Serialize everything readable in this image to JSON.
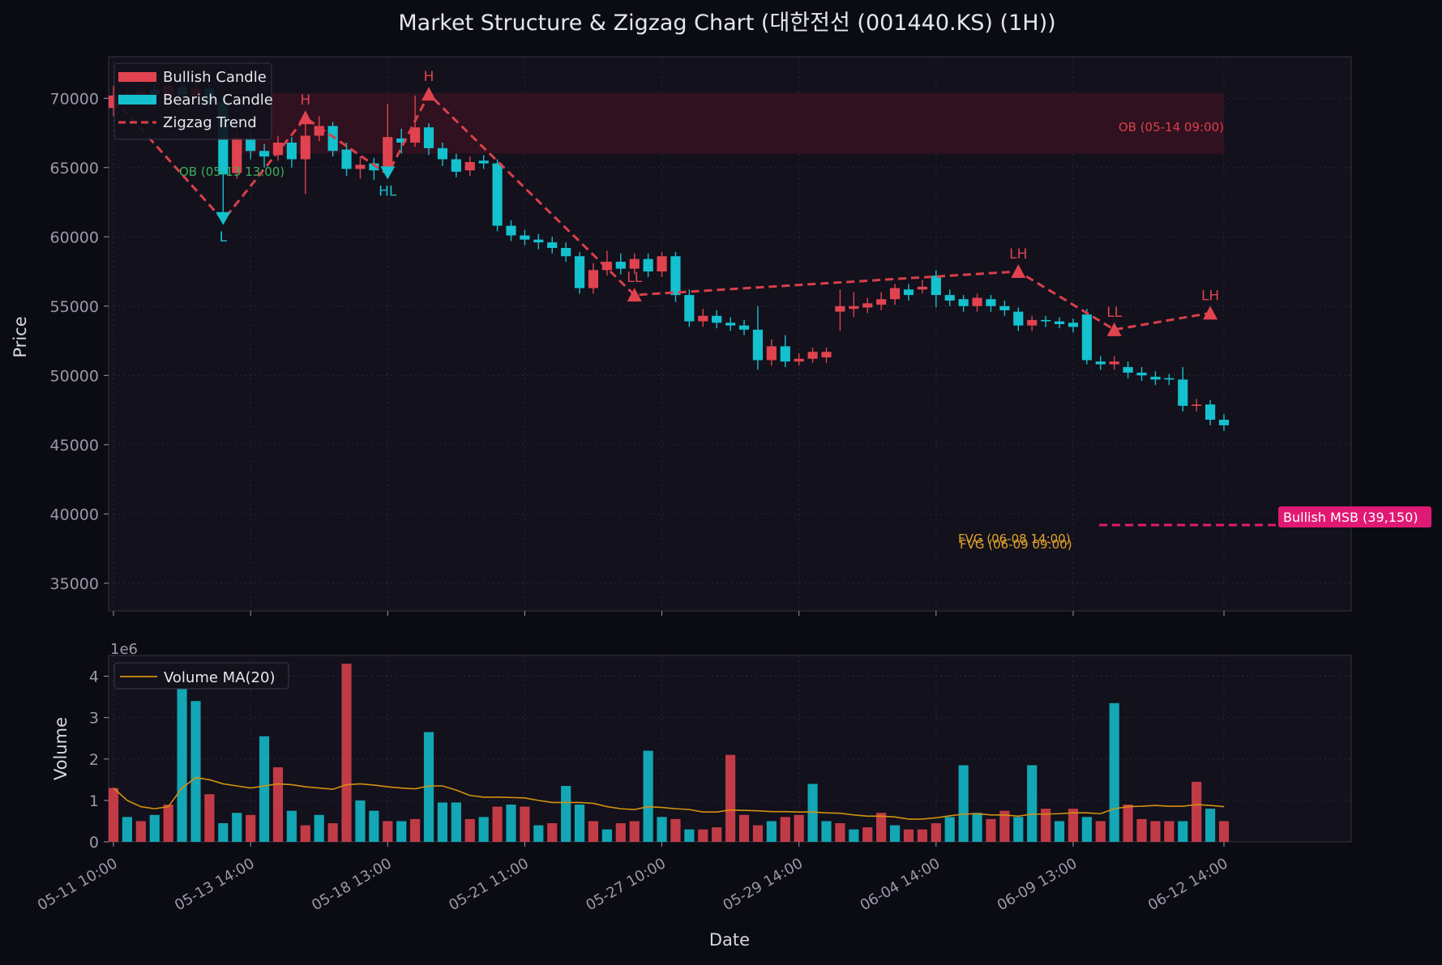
{
  "title": "Market Structure & Zigzag Chart (대한전선 (001440.KS) (1H))",
  "colors": {
    "background": "#0b0b14",
    "panel": "#12111c",
    "grid": "#2a2936",
    "bullish": "#e0434f",
    "bearish": "#14c1cf",
    "zigzag": "#d9404a",
    "volume_ma": "#d4910f",
    "msb": "#e01a74",
    "ob_bear": "#3a1220",
    "ob_bull_text": "#3fae57",
    "fvg": "#e0a12a",
    "text": "#d8d8e0",
    "tick": "#9a99a8"
  },
  "legend_price": [
    {
      "label": "Bullish Candle",
      "color": "#e0434f",
      "kind": "bar"
    },
    {
      "label": "Bearish Candle",
      "color": "#14c1cf",
      "kind": "bar"
    },
    {
      "label": "Zigzag Trend",
      "color": "#d9404a",
      "kind": "dash"
    }
  ],
  "legend_volume": [
    {
      "label": "Volume MA(20)",
      "color": "#d4910f",
      "kind": "line"
    }
  ],
  "annotations": {
    "ob_bear_label": "OB (05-14 09:00)",
    "ob_bull_label": "OB (05-13 13:00)",
    "fvg_label_1": "FVG (06-08 14:00)",
    "fvg_label_2": "FVG (06-09 09:00)",
    "msb_label": "Bullish MSB (39,150)",
    "volume_exponent": "1e6"
  },
  "chart_data": [
    {
      "type": "candlestick",
      "ylabel": "Price",
      "ylim": [
        33000,
        73000
      ],
      "yticks": [
        35000,
        40000,
        45000,
        50000,
        55000,
        60000,
        65000,
        70000
      ],
      "grid": true,
      "legend_position": "top-left",
      "bars": 82,
      "candles": [
        {
          "i": 0,
          "o": 69300,
          "c": 70200,
          "h": 70900,
          "l": 68700
        },
        {
          "i": 1,
          "o": 70100,
          "c": 70300,
          "h": 70800,
          "l": 69600
        },
        {
          "i": 2,
          "o": 70200,
          "c": 70500,
          "h": 71000,
          "l": 69900
        },
        {
          "i": 3,
          "o": 70600,
          "c": 70300,
          "h": 71000,
          "l": 69800
        },
        {
          "i": 4,
          "o": 70100,
          "c": 70900,
          "h": 71300,
          "l": 69800
        },
        {
          "i": 5,
          "o": 70800,
          "c": 70200,
          "h": 71200,
          "l": 69700
        },
        {
          "i": 6,
          "o": 70200,
          "c": 70700,
          "h": 71100,
          "l": 69900
        },
        {
          "i": 7,
          "o": 70700,
          "c": 69700,
          "h": 72000,
          "l": 69300
        },
        {
          "i": 8,
          "o": 69700,
          "c": 64500,
          "h": 70200,
          "l": 61200
        },
        {
          "i": 9,
          "o": 64600,
          "c": 67200,
          "h": 67700,
          "l": 64200
        },
        {
          "i": 10,
          "o": 67100,
          "c": 66200,
          "h": 67600,
          "l": 65600
        },
        {
          "i": 11,
          "o": 66200,
          "c": 65800,
          "h": 66700,
          "l": 65000
        },
        {
          "i": 12,
          "o": 65900,
          "c": 66800,
          "h": 67300,
          "l": 65500
        },
        {
          "i": 13,
          "o": 66800,
          "c": 65600,
          "h": 67200,
          "l": 65000
        },
        {
          "i": 14,
          "o": 65600,
          "c": 67300,
          "h": 68400,
          "l": 63100
        },
        {
          "i": 15,
          "o": 67300,
          "c": 68000,
          "h": 68700,
          "l": 66900
        },
        {
          "i": 16,
          "o": 68000,
          "c": 66200,
          "h": 68300,
          "l": 65800
        },
        {
          "i": 17,
          "o": 66300,
          "c": 64900,
          "h": 66800,
          "l": 64400
        },
        {
          "i": 18,
          "o": 64900,
          "c": 65200,
          "h": 65800,
          "l": 64200
        },
        {
          "i": 19,
          "o": 65300,
          "c": 64800,
          "h": 65700,
          "l": 64100
        },
        {
          "i": 20,
          "o": 64700,
          "c": 67200,
          "h": 69600,
          "l": 64400
        },
        {
          "i": 21,
          "o": 67100,
          "c": 66800,
          "h": 67800,
          "l": 66000
        },
        {
          "i": 22,
          "o": 66800,
          "c": 67900,
          "h": 70200,
          "l": 66500
        },
        {
          "i": 23,
          "o": 67900,
          "c": 66400,
          "h": 68200,
          "l": 65900
        },
        {
          "i": 24,
          "o": 66400,
          "c": 65600,
          "h": 66800,
          "l": 65100
        },
        {
          "i": 25,
          "o": 65600,
          "c": 64700,
          "h": 66000,
          "l": 64300
        },
        {
          "i": 26,
          "o": 64800,
          "c": 65400,
          "h": 65800,
          "l": 64400
        },
        {
          "i": 27,
          "o": 65500,
          "c": 65300,
          "h": 65900,
          "l": 64900
        },
        {
          "i": 28,
          "o": 65300,
          "c": 60800,
          "h": 65600,
          "l": 60400
        },
        {
          "i": 29,
          "o": 60800,
          "c": 60100,
          "h": 61200,
          "l": 59700
        },
        {
          "i": 30,
          "o": 60100,
          "c": 59800,
          "h": 60500,
          "l": 59400
        },
        {
          "i": 31,
          "o": 59800,
          "c": 59600,
          "h": 60200,
          "l": 59100
        },
        {
          "i": 32,
          "o": 59600,
          "c": 59200,
          "h": 60000,
          "l": 58800
        },
        {
          "i": 33,
          "o": 59200,
          "c": 58600,
          "h": 59600,
          "l": 58200
        },
        {
          "i": 34,
          "o": 58600,
          "c": 56300,
          "h": 58900,
          "l": 55900
        },
        {
          "i": 35,
          "o": 56300,
          "c": 57600,
          "h": 58100,
          "l": 55900
        },
        {
          "i": 36,
          "o": 57600,
          "c": 58200,
          "h": 59000,
          "l": 57200
        },
        {
          "i": 37,
          "o": 58200,
          "c": 57700,
          "h": 58800,
          "l": 57300
        },
        {
          "i": 38,
          "o": 57700,
          "c": 58400,
          "h": 58800,
          "l": 57300
        },
        {
          "i": 39,
          "o": 58400,
          "c": 57500,
          "h": 58800,
          "l": 57100
        },
        {
          "i": 40,
          "o": 57500,
          "c": 58600,
          "h": 58900,
          "l": 57100
        },
        {
          "i": 41,
          "o": 58600,
          "c": 55800,
          "h": 58900,
          "l": 55300
        },
        {
          "i": 42,
          "o": 55800,
          "c": 53900,
          "h": 56200,
          "l": 53500
        },
        {
          "i": 43,
          "o": 53900,
          "c": 54300,
          "h": 54800,
          "l": 53500
        },
        {
          "i": 44,
          "o": 54300,
          "c": 53800,
          "h": 54700,
          "l": 53400
        },
        {
          "i": 45,
          "o": 53800,
          "c": 53600,
          "h": 54200,
          "l": 53200
        },
        {
          "i": 46,
          "o": 53600,
          "c": 53300,
          "h": 54000,
          "l": 52900
        },
        {
          "i": 47,
          "o": 53300,
          "c": 51100,
          "h": 55000,
          "l": 50400
        },
        {
          "i": 48,
          "o": 51100,
          "c": 52100,
          "h": 52600,
          "l": 50700
        },
        {
          "i": 49,
          "o": 52100,
          "c": 51000,
          "h": 52900,
          "l": 50600
        },
        {
          "i": 50,
          "o": 51000,
          "c": 51200,
          "h": 51600,
          "l": 50700
        },
        {
          "i": 51,
          "o": 51200,
          "c": 51700,
          "h": 52000,
          "l": 50900
        },
        {
          "i": 52,
          "o": 51300,
          "c": 51700,
          "h": 52000,
          "l": 50900
        },
        {
          "i": 53,
          "o": 54600,
          "c": 55000,
          "h": 56200,
          "l": 53200
        },
        {
          "i": 54,
          "o": 54800,
          "c": 55000,
          "h": 56000,
          "l": 54200
        },
        {
          "i": 55,
          "o": 54900,
          "c": 55200,
          "h": 55600,
          "l": 54500
        },
        {
          "i": 56,
          "o": 55100,
          "c": 55500,
          "h": 56000,
          "l": 54700
        },
        {
          "i": 57,
          "o": 55500,
          "c": 56300,
          "h": 56600,
          "l": 55100
        },
        {
          "i": 58,
          "o": 56200,
          "c": 55800,
          "h": 56600,
          "l": 55400
        },
        {
          "i": 59,
          "o": 56200,
          "c": 56400,
          "h": 56900,
          "l": 55900
        },
        {
          "i": 60,
          "o": 57200,
          "c": 55800,
          "h": 57600,
          "l": 54900
        },
        {
          "i": 61,
          "o": 55800,
          "c": 55400,
          "h": 56200,
          "l": 55000
        },
        {
          "i": 62,
          "o": 55500,
          "c": 55000,
          "h": 55800,
          "l": 54600
        },
        {
          "i": 63,
          "o": 55000,
          "c": 55600,
          "h": 55900,
          "l": 54600
        },
        {
          "i": 64,
          "o": 55500,
          "c": 55000,
          "h": 55800,
          "l": 54600
        },
        {
          "i": 65,
          "o": 55000,
          "c": 54700,
          "h": 55400,
          "l": 54300
        },
        {
          "i": 66,
          "o": 54600,
          "c": 53600,
          "h": 54900,
          "l": 53200
        },
        {
          "i": 67,
          "o": 53600,
          "c": 54000,
          "h": 54300,
          "l": 53200
        },
        {
          "i": 68,
          "o": 54000,
          "c": 53900,
          "h": 54300,
          "l": 53500
        },
        {
          "i": 69,
          "o": 53900,
          "c": 53700,
          "h": 54200,
          "l": 53400
        },
        {
          "i": 70,
          "o": 53800,
          "c": 53500,
          "h": 54100,
          "l": 53100
        },
        {
          "i": 71,
          "o": 54400,
          "c": 51100,
          "h": 54800,
          "l": 50800
        },
        {
          "i": 72,
          "o": 51000,
          "c": 50800,
          "h": 51400,
          "l": 50400
        },
        {
          "i": 73,
          "o": 50800,
          "c": 51000,
          "h": 51400,
          "l": 50400
        },
        {
          "i": 74,
          "o": 50600,
          "c": 50200,
          "h": 51000,
          "l": 49800
        },
        {
          "i": 75,
          "o": 50200,
          "c": 50000,
          "h": 50600,
          "l": 49600
        },
        {
          "i": 76,
          "o": 49900,
          "c": 49700,
          "h": 50300,
          "l": 49300
        },
        {
          "i": 77,
          "o": 49800,
          "c": 49700,
          "h": 50100,
          "l": 49300
        },
        {
          "i": 78,
          "o": 49700,
          "c": 47800,
          "h": 50600,
          "l": 47400
        },
        {
          "i": 79,
          "o": 47800,
          "c": 47900,
          "h": 48300,
          "l": 47400
        },
        {
          "i": 80,
          "o": 47900,
          "c": 46800,
          "h": 48200,
          "l": 46400
        },
        {
          "i": 81,
          "o": 46800,
          "c": 46400,
          "h": 47200,
          "l": 46000
        }
      ],
      "zigzag": [
        {
          "i": 0,
          "price": 70000
        },
        {
          "i": 8,
          "price": 61200,
          "label": "L"
        },
        {
          "i": 14,
          "price": 68600,
          "label": "H"
        },
        {
          "i": 20,
          "price": 64500,
          "label": "HL"
        },
        {
          "i": 23,
          "price": 70300,
          "label": "H"
        },
        {
          "i": 38,
          "price": 55800,
          "label": "LL"
        },
        {
          "i": 66,
          "price": 57500,
          "label": "LH"
        },
        {
          "i": 73,
          "price": 53300,
          "label": "LL"
        },
        {
          "i": 80,
          "price": 54500,
          "label": "LH"
        }
      ]
    },
    {
      "type": "bar",
      "ylabel": "Volume",
      "xlabel": "Date",
      "ylim": [
        0,
        4.5
      ],
      "yticks": [
        0,
        1,
        2,
        3,
        4
      ],
      "grid": true,
      "legend_position": "top-left",
      "xtick_labels": [
        "05-11 10:00",
        "05-13 14:00",
        "05-18 13:00",
        "05-21 11:00",
        "05-27 10:00",
        "05-29 14:00",
        "06-04 14:00",
        "06-09 13:00",
        "06-12 14:00"
      ],
      "volumes": [
        1.3,
        0.6,
        0.5,
        0.65,
        0.9,
        3.8,
        3.4,
        1.15,
        0.45,
        0.7,
        0.65,
        2.55,
        1.8,
        0.75,
        0.4,
        0.65,
        0.45,
        4.3,
        1.0,
        0.75,
        0.5,
        0.5,
        0.55,
        2.65,
        0.95,
        0.95,
        0.55,
        0.6,
        0.85,
        0.9,
        0.85,
        0.4,
        0.45,
        1.35,
        0.9,
        0.5,
        0.3,
        0.45,
        0.5,
        2.2,
        0.6,
        0.55,
        0.3,
        0.3,
        0.35,
        2.1,
        0.65,
        0.4,
        0.5,
        0.6,
        0.65,
        1.4,
        0.5,
        0.45,
        0.3,
        0.35,
        0.7,
        0.4,
        0.3,
        0.3,
        0.45,
        0.6,
        1.85,
        0.7,
        0.55,
        0.75,
        0.6,
        1.85,
        0.8,
        0.5,
        0.8,
        0.6,
        0.5,
        3.35,
        0.9,
        0.55,
        0.5,
        0.5,
        0.5,
        1.45,
        0.8,
        0.5
      ],
      "volume_ma": [
        1.3,
        1.0,
        0.85,
        0.8,
        0.85,
        1.3,
        1.55,
        1.5,
        1.4,
        1.35,
        1.3,
        1.35,
        1.4,
        1.38,
        1.33,
        1.3,
        1.27,
        1.38,
        1.4,
        1.37,
        1.33,
        1.3,
        1.28,
        1.35,
        1.35,
        1.25,
        1.12,
        1.08,
        1.08,
        1.07,
        1.06,
        1.0,
        0.95,
        0.95,
        0.95,
        0.93,
        0.85,
        0.8,
        0.78,
        0.85,
        0.83,
        0.8,
        0.78,
        0.72,
        0.72,
        0.77,
        0.76,
        0.75,
        0.73,
        0.73,
        0.72,
        0.72,
        0.7,
        0.69,
        0.65,
        0.62,
        0.62,
        0.6,
        0.55,
        0.55,
        0.58,
        0.63,
        0.67,
        0.68,
        0.65,
        0.65,
        0.62,
        0.67,
        0.67,
        0.68,
        0.7,
        0.7,
        0.68,
        0.8,
        0.85,
        0.86,
        0.88,
        0.86,
        0.86,
        0.9,
        0.88,
        0.85
      ],
      "volume_colors": [
        "bull",
        "bear",
        "bull",
        "bear",
        "bull",
        "bear",
        "bear",
        "bull",
        "bear",
        "bear",
        "bull",
        "bear",
        "bull",
        "bear",
        "bull",
        "bear",
        "bull",
        "bull",
        "bear",
        "bear",
        "bull",
        "bear",
        "bull",
        "bear",
        "bear",
        "bear",
        "bull",
        "bear",
        "bull",
        "bear",
        "bull",
        "bear",
        "bull",
        "bear",
        "bear",
        "bull",
        "bear",
        "bull",
        "bull",
        "bear",
        "bear",
        "bull",
        "bear",
        "bull",
        "bull",
        "bull",
        "bull",
        "bull",
        "bear",
        "bull",
        "bull",
        "bear",
        "bear",
        "bull",
        "bear",
        "bull",
        "bull",
        "bear",
        "bull",
        "bull",
        "bull",
        "bear",
        "bear",
        "bear",
        "bull",
        "bull",
        "bear",
        "bear",
        "bull",
        "bear",
        "bull",
        "bear",
        "bull",
        "bear",
        "bull",
        "bull",
        "bull",
        "bull",
        "bear",
        "bull",
        "bear",
        "bull"
      ]
    }
  ]
}
